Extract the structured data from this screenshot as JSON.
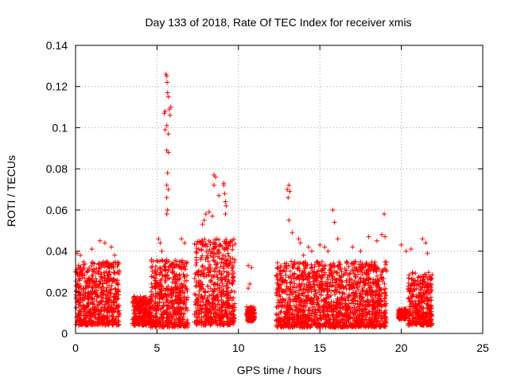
{
  "chart_data": {
    "type": "scatter",
    "title": "Day 133 of 2018, Rate Of TEC Index for receiver xmis",
    "xlabel": "GPS time / hours",
    "ylabel": "ROTI / TECUs",
    "xlim": [
      0,
      25
    ],
    "ylim": [
      0,
      0.14
    ],
    "x_ticks": [
      "0",
      "5",
      "10",
      "15",
      "20",
      "25"
    ],
    "y_ticks": [
      "0",
      "0.02",
      "0.04",
      "0.06",
      "0.08",
      "0.1",
      "0.12",
      "0.14"
    ],
    "grid": true,
    "marker": "plus",
    "color": "#ff0000",
    "series": [
      {
        "points": [
          [
            0.1,
            0.039
          ],
          [
            0.3,
            0.038
          ],
          [
            1.0,
            0.041
          ],
          [
            1.5,
            0.045
          ],
          [
            1.8,
            0.044
          ],
          [
            2.2,
            0.042
          ],
          [
            2.4,
            0.038
          ],
          [
            5.1,
            0.046
          ],
          [
            5.2,
            0.044
          ],
          [
            5.3,
            0.04
          ],
          [
            5.45,
            0.107
          ],
          [
            5.5,
            0.108
          ],
          [
            5.55,
            0.126
          ],
          [
            5.6,
            0.125
          ],
          [
            5.62,
            0.122
          ],
          [
            5.65,
            0.117
          ],
          [
            5.7,
            0.115
          ],
          [
            5.75,
            0.109
          ],
          [
            5.8,
            0.106
          ],
          [
            5.85,
            0.11
          ],
          [
            5.5,
            0.099
          ],
          [
            5.6,
            0.101
          ],
          [
            5.7,
            0.097
          ],
          [
            5.6,
            0.089
          ],
          [
            5.7,
            0.088
          ],
          [
            5.65,
            0.078
          ],
          [
            5.6,
            0.072
          ],
          [
            5.7,
            0.07
          ],
          [
            5.6,
            0.066
          ],
          [
            5.65,
            0.06
          ],
          [
            5.6,
            0.058
          ],
          [
            6.5,
            0.046
          ],
          [
            6.7,
            0.044
          ],
          [
            7.8,
            0.053
          ],
          [
            7.9,
            0.055
          ],
          [
            8.0,
            0.058
          ],
          [
            8.2,
            0.059
          ],
          [
            8.4,
            0.057
          ],
          [
            8.5,
            0.077
          ],
          [
            8.6,
            0.076
          ],
          [
            8.5,
            0.072
          ],
          [
            8.8,
            0.067
          ],
          [
            9.1,
            0.073
          ],
          [
            9.1,
            0.072
          ],
          [
            9.15,
            0.068
          ],
          [
            9.2,
            0.064
          ],
          [
            9.25,
            0.062
          ],
          [
            9.2,
            0.058
          ],
          [
            10.6,
            0.033
          ],
          [
            10.8,
            0.032
          ],
          [
            10.7,
            0.024
          ],
          [
            10.6,
            0.022
          ],
          [
            13.0,
            0.07
          ],
          [
            13.1,
            0.072
          ],
          [
            13.15,
            0.069
          ],
          [
            13.05,
            0.066
          ],
          [
            13.1,
            0.055
          ],
          [
            13.3,
            0.049
          ],
          [
            13.7,
            0.046
          ],
          [
            13.8,
            0.044
          ],
          [
            14.0,
            0.038
          ],
          [
            14.3,
            0.042
          ],
          [
            14.5,
            0.04
          ],
          [
            15.0,
            0.043
          ],
          [
            15.3,
            0.042
          ],
          [
            15.5,
            0.04
          ],
          [
            15.8,
            0.06
          ],
          [
            15.9,
            0.054
          ],
          [
            16.1,
            0.046
          ],
          [
            17.0,
            0.042
          ],
          [
            17.5,
            0.04
          ],
          [
            18.0,
            0.047
          ],
          [
            18.5,
            0.045
          ],
          [
            18.8,
            0.048
          ],
          [
            18.95,
            0.058
          ],
          [
            19.0,
            0.047
          ],
          [
            20.0,
            0.043
          ],
          [
            20.3,
            0.04
          ],
          [
            20.6,
            0.041
          ],
          [
            21.3,
            0.046
          ],
          [
            21.5,
            0.044
          ],
          [
            21.6,
            0.039
          ],
          [
            0.5,
            0.012
          ],
          [
            0.8,
            0.018
          ],
          [
            1.2,
            0.009
          ],
          [
            1.6,
            0.022
          ],
          [
            2.0,
            0.015
          ],
          [
            2.3,
            0.026
          ],
          [
            3.8,
            0.016
          ],
          [
            4.2,
            0.011
          ],
          [
            4.6,
            0.018
          ],
          [
            5.3,
            0.009
          ],
          [
            6.0,
            0.02
          ],
          [
            6.4,
            0.012
          ],
          [
            7.6,
            0.024
          ],
          [
            8.1,
            0.031
          ],
          [
            8.7,
            0.014
          ],
          [
            9.3,
            0.022
          ],
          [
            10.7,
            0.009
          ],
          [
            10.8,
            0.012
          ],
          [
            12.4,
            0.021
          ],
          [
            12.8,
            0.013
          ],
          [
            13.5,
            0.018
          ],
          [
            14.2,
            0.027
          ],
          [
            14.9,
            0.011
          ],
          [
            15.6,
            0.024
          ],
          [
            16.3,
            0.016
          ],
          [
            17.1,
            0.022
          ],
          [
            17.8,
            0.012
          ],
          [
            18.4,
            0.025
          ],
          [
            19.0,
            0.017
          ],
          [
            19.9,
            0.009
          ],
          [
            20.1,
            0.011
          ],
          [
            20.9,
            0.013
          ],
          [
            21.2,
            0.021
          ],
          [
            21.6,
            0.01
          ]
        ]
      }
    ],
    "dense_bands": [
      {
        "x": [
          0.0,
          2.7
        ],
        "y": [
          0.004,
          0.035
        ]
      },
      {
        "x": [
          3.5,
          4.6
        ],
        "y": [
          0.004,
          0.018
        ]
      },
      {
        "x": [
          4.6,
          6.9
        ],
        "y": [
          0.003,
          0.036
        ]
      },
      {
        "x": [
          7.3,
          9.8
        ],
        "y": [
          0.004,
          0.046
        ]
      },
      {
        "x": [
          10.5,
          11.0
        ],
        "y": [
          0.006,
          0.013
        ]
      },
      {
        "x": [
          12.3,
          19.1
        ],
        "y": [
          0.003,
          0.035
        ]
      },
      {
        "x": [
          19.8,
          20.3
        ],
        "y": [
          0.007,
          0.012
        ]
      },
      {
        "x": [
          20.4,
          21.9
        ],
        "y": [
          0.004,
          0.03
        ]
      }
    ]
  }
}
